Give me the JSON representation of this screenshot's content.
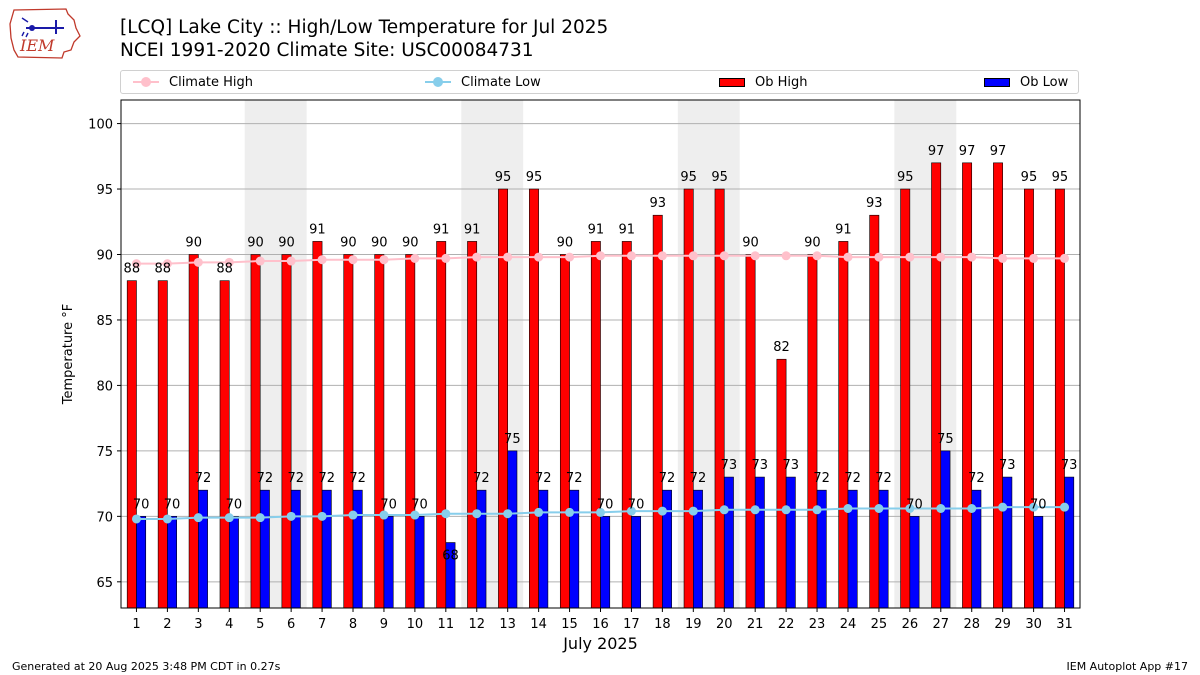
{
  "header": {
    "logo_text": "IEM",
    "title_line1": "[LCQ] Lake City :: High/Low Temperature for Jul 2025",
    "title_line2": "NCEI 1991-2020 Climate Site: USC00084731"
  },
  "legend": {
    "climate_high": "Climate High",
    "climate_low": "Climate Low",
    "ob_high": "Ob High",
    "ob_low": "Ob Low"
  },
  "colors": {
    "ob_high": "#ff0000",
    "ob_low": "#0000ff",
    "climate_high": "#ffc0cb",
    "climate_low": "#87ceeb",
    "weekend_shading": "#eeeeee",
    "grid": "#b0b0b0"
  },
  "chart_data": {
    "type": "bar",
    "xlabel": "July 2025",
    "ylabel": "Temperature °F",
    "ylim": [
      63,
      101.8
    ],
    "yticks": [
      65,
      70,
      75,
      80,
      85,
      90,
      95,
      100
    ],
    "grid": "horizontal",
    "categories": [
      "1",
      "2",
      "3",
      "4",
      "5",
      "6",
      "7",
      "8",
      "9",
      "10",
      "11",
      "12",
      "13",
      "14",
      "15",
      "16",
      "17",
      "18",
      "19",
      "20",
      "21",
      "22",
      "23",
      "24",
      "25",
      "26",
      "27",
      "28",
      "29",
      "30",
      "31"
    ],
    "weekend_shaded_days": [
      [
        5,
        6
      ],
      [
        12,
        13
      ],
      [
        19,
        20
      ],
      [
        26,
        27
      ]
    ],
    "series": [
      {
        "name": "Ob High",
        "kind": "bar",
        "values": [
          88,
          88,
          90,
          88,
          90,
          90,
          91,
          90,
          90,
          90,
          91,
          91,
          95,
          95,
          90,
          91,
          91,
          93,
          95,
          95,
          90,
          82,
          90,
          91,
          93,
          95,
          97,
          97,
          97,
          95,
          95
        ]
      },
      {
        "name": "Ob Low",
        "kind": "bar",
        "values": [
          70,
          70,
          72,
          70,
          72,
          72,
          72,
          72,
          70,
          70,
          68,
          72,
          75,
          72,
          72,
          70,
          70,
          72,
          72,
          73,
          73,
          73,
          72,
          72,
          72,
          70,
          75,
          72,
          73,
          70,
          73
        ]
      },
      {
        "name": "Climate High",
        "kind": "line",
        "values": [
          89.3,
          89.3,
          89.4,
          89.4,
          89.5,
          89.5,
          89.6,
          89.6,
          89.6,
          89.7,
          89.7,
          89.8,
          89.8,
          89.8,
          89.8,
          89.9,
          89.9,
          89.9,
          89.9,
          89.9,
          89.9,
          89.9,
          89.9,
          89.8,
          89.8,
          89.8,
          89.8,
          89.8,
          89.7,
          89.7,
          89.7
        ]
      },
      {
        "name": "Climate Low",
        "kind": "line",
        "values": [
          69.8,
          69.8,
          69.9,
          69.9,
          69.9,
          70.0,
          70.0,
          70.1,
          70.1,
          70.1,
          70.2,
          70.2,
          70.2,
          70.3,
          70.3,
          70.3,
          70.4,
          70.4,
          70.4,
          70.5,
          70.5,
          70.5,
          70.5,
          70.6,
          70.6,
          70.6,
          70.6,
          70.6,
          70.7,
          70.7,
          70.7
        ]
      }
    ]
  },
  "footer": {
    "generated": "Generated at 20 Aug 2025 3:48 PM CDT in 0.27s",
    "app": "IEM Autoplot App #17"
  }
}
